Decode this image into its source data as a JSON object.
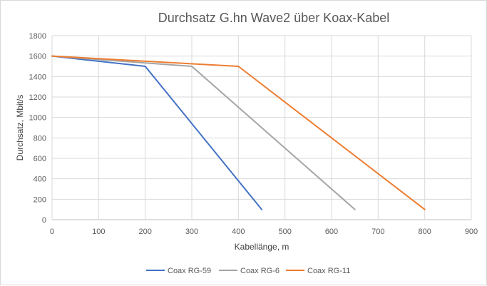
{
  "chart_data": {
    "type": "line",
    "title": "Durchsatz G.hn Wave2 über Koax-Kabel",
    "xlabel": "Kabellänge, m",
    "ylabel": "Durchsatz, Mbit/s",
    "xlim": [
      0,
      900
    ],
    "ylim": [
      0,
      1800
    ],
    "xticks": [
      0,
      100,
      200,
      300,
      400,
      500,
      600,
      700,
      800,
      900
    ],
    "yticks": [
      0,
      200,
      400,
      600,
      800,
      1000,
      1200,
      1400,
      1600,
      1800
    ],
    "grid": true,
    "legend_position": "bottom",
    "series": [
      {
        "name": "Coax RG-59",
        "color": "#4472C4",
        "x": [
          0,
          200,
          450
        ],
        "y": [
          1600,
          1500,
          100
        ]
      },
      {
        "name": "Coax RG-6",
        "color": "#A5A5A5",
        "x": [
          0,
          300,
          650
        ],
        "y": [
          1600,
          1500,
          100
        ]
      },
      {
        "name": "Coax RG-11",
        "color": "#ED7D31",
        "x": [
          0,
          400,
          800
        ],
        "y": [
          1600,
          1500,
          100
        ]
      }
    ]
  }
}
